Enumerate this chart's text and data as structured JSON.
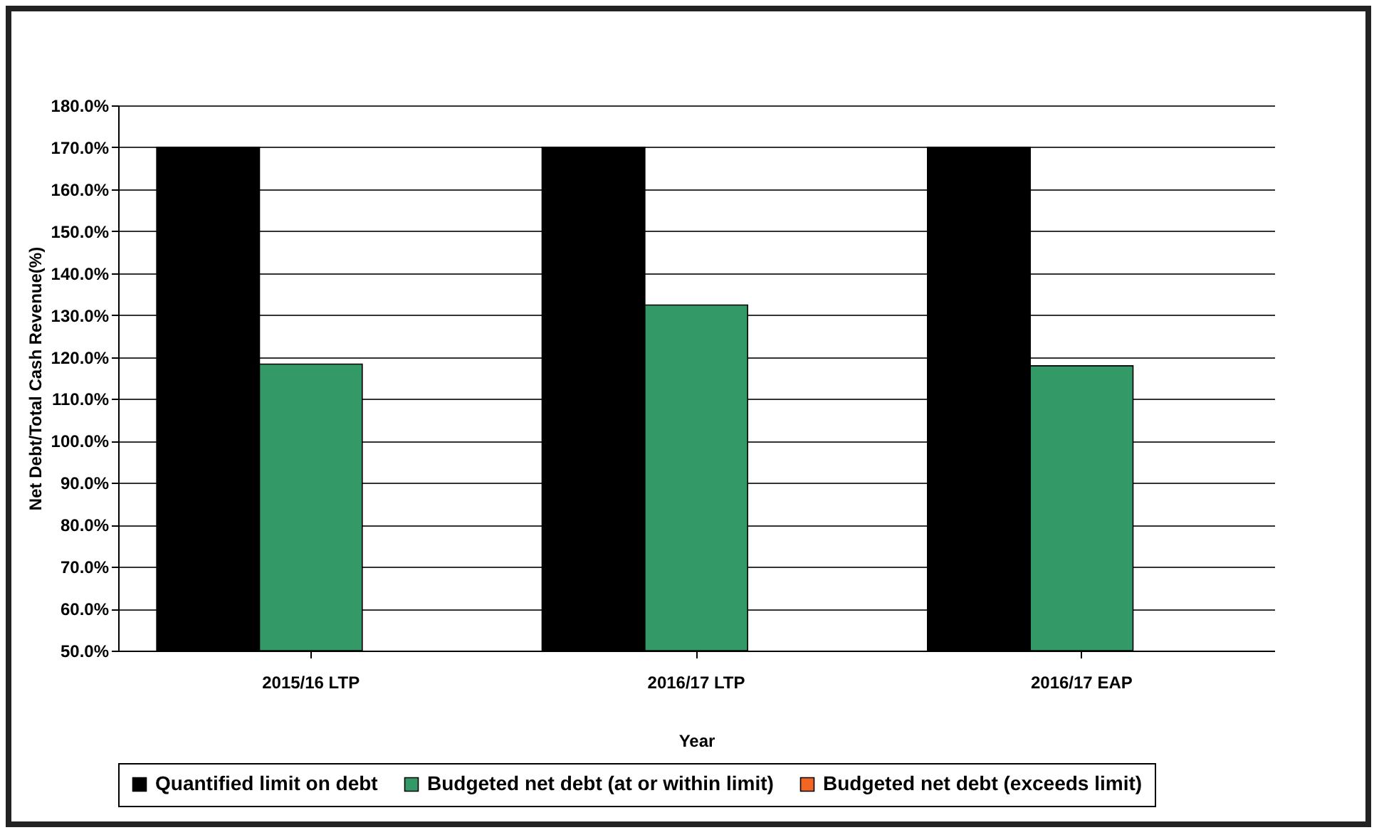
{
  "chart_data": {
    "type": "bar",
    "xlabel": "Year",
    "ylabel": "Net Debt/Total Cash Revenue(%)",
    "categories": [
      "2015/16 LTP",
      "2016/17 LTP",
      "2016/17 EAP"
    ],
    "series": [
      {
        "name": "Quantified limit on debt",
        "color": "#000000",
        "values": [
          170,
          170,
          170
        ]
      },
      {
        "name": "Budgeted net debt (at or within limit)",
        "color": "#339966",
        "values": [
          118.3,
          132.4,
          117.9
        ]
      },
      {
        "name": "Budgeted net debt (exceeds limit)",
        "color": "#f26522",
        "values": [
          null,
          null,
          null
        ]
      }
    ],
    "ylim": [
      50,
      180
    ],
    "yticks": [
      {
        "value": 50,
        "label": "50.0%"
      },
      {
        "value": 60,
        "label": "60.0%"
      },
      {
        "value": 70,
        "label": "70.0%"
      },
      {
        "value": 80,
        "label": "80.0%"
      },
      {
        "value": 90,
        "label": "90.0%"
      },
      {
        "value": 100,
        "label": "100.0%"
      },
      {
        "value": 110,
        "label": "110.0%"
      },
      {
        "value": 120,
        "label": "120.0%"
      },
      {
        "value": 130,
        "label": "130.0%"
      },
      {
        "value": 140,
        "label": "140.0%"
      },
      {
        "value": 150,
        "label": "150.0%"
      },
      {
        "value": 160,
        "label": "160.0%"
      },
      {
        "value": 170,
        "label": "170.0%"
      },
      {
        "value": 180,
        "label": "180.0%"
      }
    ],
    "grid": "y",
    "legend": "bottom"
  }
}
